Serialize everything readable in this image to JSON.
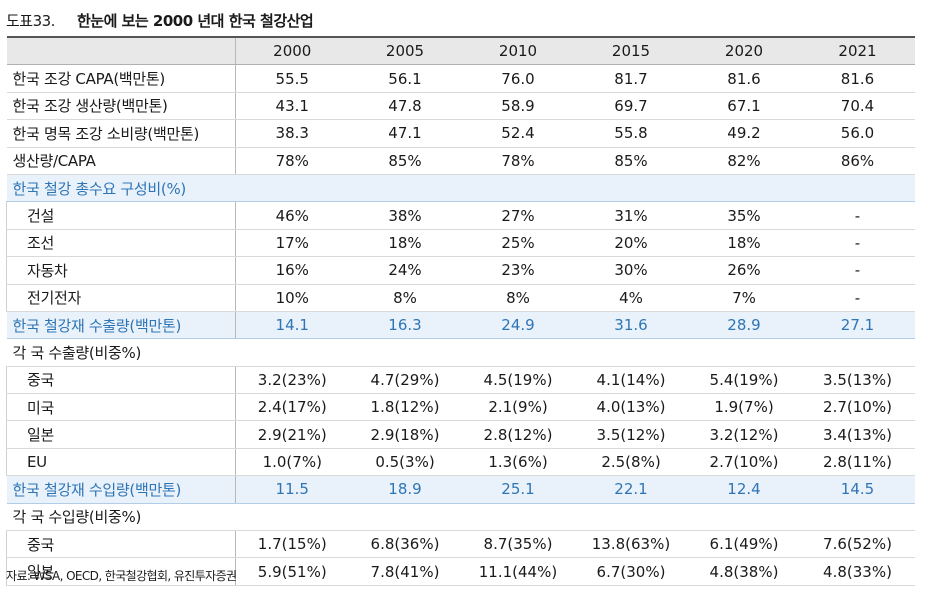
{
  "doc": {
    "table_id": "도표33.",
    "title": "한눈에 보는 2000 년대 한국 철강산업",
    "source": "자료: WSA, OECD, 한국철강협회, 유진투자증권"
  },
  "columns": [
    "2000",
    "2005",
    "2010",
    "2015",
    "2020",
    "2021"
  ],
  "main_rows": [
    {
      "label": "한국 조강 CAPA(백만톤)",
      "values": [
        "55.5",
        "56.1",
        "76.0",
        "81.7",
        "81.6",
        "81.6"
      ]
    },
    {
      "label": "한국 조강 생산량(백만톤)",
      "values": [
        "43.1",
        "47.8",
        "58.9",
        "69.7",
        "67.1",
        "70.4"
      ]
    },
    {
      "label": "한국 명목 조강 소비량(백만톤)",
      "values": [
        "38.3",
        "47.1",
        "52.4",
        "55.8",
        "49.2",
        "56.0"
      ]
    },
    {
      "label": "생산량/CAPA",
      "values": [
        "78%",
        "85%",
        "78%",
        "85%",
        "82%",
        "86%"
      ]
    }
  ],
  "demand_header": "한국 철강 총수요 구성비(%)",
  "demand_rows": [
    {
      "label": "건설",
      "values": [
        "46%",
        "38%",
        "27%",
        "31%",
        "35%",
        "-"
      ]
    },
    {
      "label": "조선",
      "values": [
        "17%",
        "18%",
        "25%",
        "20%",
        "18%",
        "-"
      ]
    },
    {
      "label": "자동차",
      "values": [
        "16%",
        "24%",
        "23%",
        "30%",
        "26%",
        "-"
      ]
    },
    {
      "label": "전기전자",
      "values": [
        "10%",
        "8%",
        "8%",
        "4%",
        "7%",
        "-"
      ]
    }
  ],
  "export_total": {
    "label": "한국 철강재 수출량(백만톤)",
    "values": [
      "14.1",
      "16.3",
      "24.9",
      "31.6",
      "28.9",
      "27.1"
    ]
  },
  "export_header": "각 국 수출량(비중%)",
  "export_rows": [
    {
      "label": "중국",
      "values": [
        "3.2(23%)",
        "4.7(29%)",
        "4.5(19%)",
        "4.1(14%)",
        "5.4(19%)",
        "3.5(13%)"
      ]
    },
    {
      "label": "미국",
      "values": [
        "2.4(17%)",
        "1.8(12%)",
        "2.1(9%)",
        "4.0(13%)",
        "1.9(7%)",
        "2.7(10%)"
      ]
    },
    {
      "label": "일본",
      "values": [
        "2.9(21%)",
        "2.9(18%)",
        "2.8(12%)",
        "3.5(12%)",
        "3.2(12%)",
        "3.4(13%)"
      ]
    },
    {
      "label": "EU",
      "values": [
        "1.0(7%)",
        "0.5(3%)",
        "1.3(6%)",
        "2.5(8%)",
        "2.7(10%)",
        "2.8(11%)"
      ]
    }
  ],
  "import_total": {
    "label": "한국 철강재 수입량(백만톤)",
    "values": [
      "11.5",
      "18.9",
      "25.1",
      "22.1",
      "12.4",
      "14.5"
    ]
  },
  "import_header": "각 국 수입량(비중%)",
  "import_rows": [
    {
      "label": "중국",
      "values": [
        "1.7(15%)",
        "6.8(36%)",
        "8.7(35%)",
        "13.8(63%)",
        "6.1(49%)",
        "7.6(52%)"
      ]
    },
    {
      "label": "일본",
      "values": [
        "5.9(51%)",
        "7.8(41%)",
        "11.1(44%)",
        "6.7(30%)",
        "4.8(38%)",
        "4.8(33%)"
      ]
    }
  ]
}
